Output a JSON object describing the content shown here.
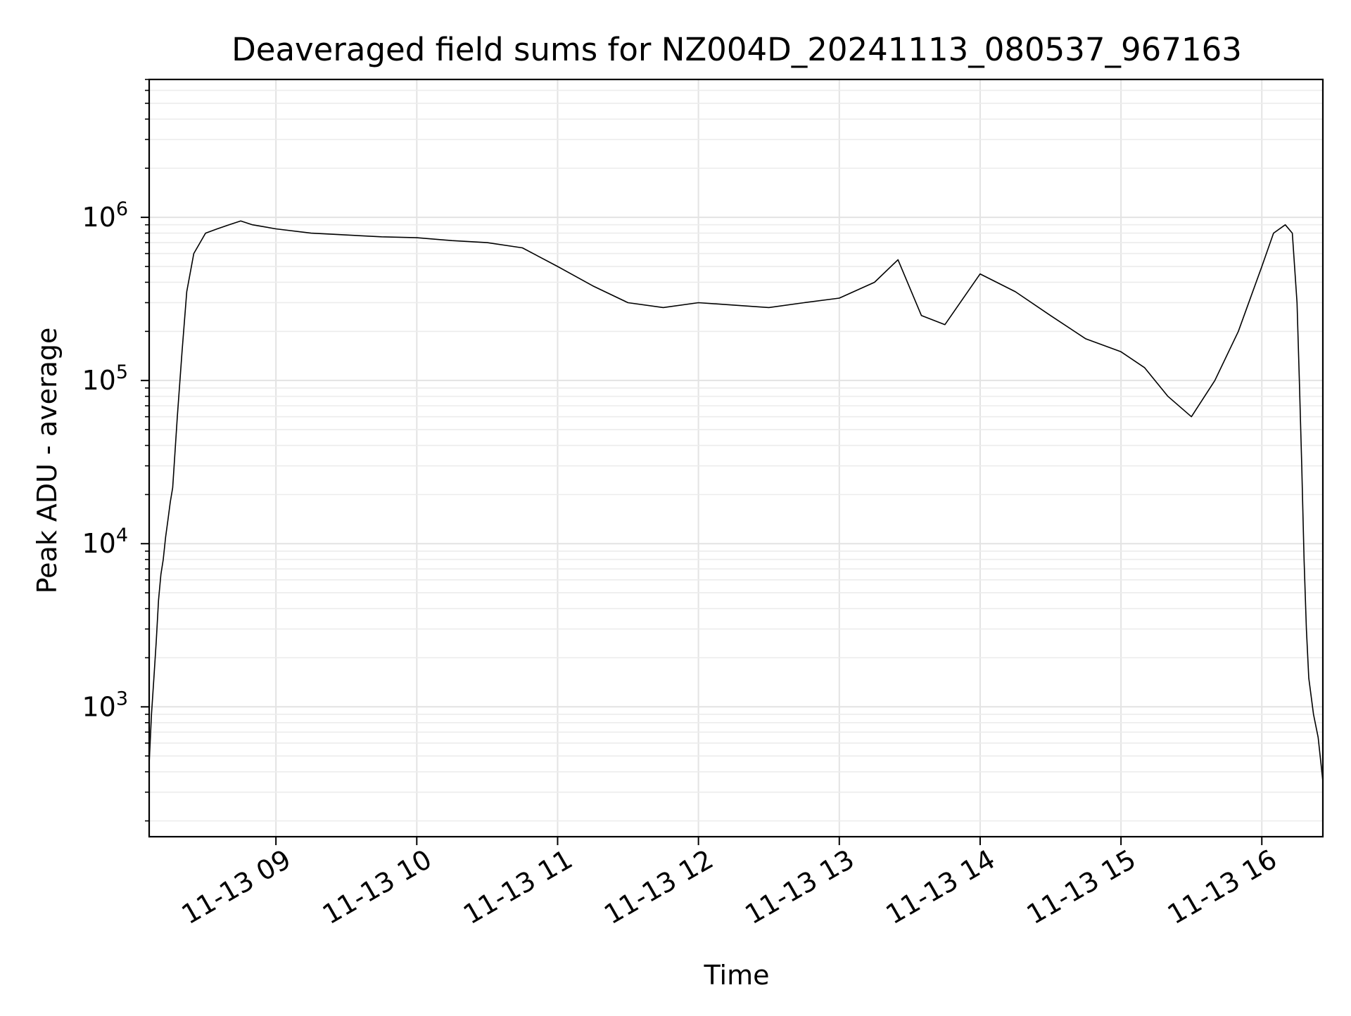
{
  "chart_data": {
    "type": "line",
    "title": "Deaveraged field sums for NZ004D_20241113_080537_967163",
    "xlabel": "Time",
    "ylabel": "Peak ADU - average",
    "yscale": "log",
    "ylim": [
      160,
      7000000
    ],
    "xlim": [
      "2024-11-13 08:06:00",
      "2024-11-13 16:26:00"
    ],
    "grid": true,
    "x_tick_labels": [
      {
        "value": "2024-11-13 09:00:00",
        "label": "11-13 09"
      },
      {
        "value": "2024-11-13 10:00:00",
        "label": "11-13 10"
      },
      {
        "value": "2024-11-13 11:00:00",
        "label": "11-13 11"
      },
      {
        "value": "2024-11-13 12:00:00",
        "label": "11-13 12"
      },
      {
        "value": "2024-11-13 13:00:00",
        "label": "11-13 13"
      },
      {
        "value": "2024-11-13 14:00:00",
        "label": "11-13 14"
      },
      {
        "value": "2024-11-13 15:00:00",
        "label": "11-13 15"
      },
      {
        "value": "2024-11-13 16:00:00",
        "label": "11-13 16"
      }
    ],
    "y_tick_labels": [
      {
        "value": 1000,
        "base": "10",
        "exp": "3"
      },
      {
        "value": 10000,
        "base": "10",
        "exp": "4"
      },
      {
        "value": 100000,
        "base": "10",
        "exp": "5"
      },
      {
        "value": 1000000,
        "base": "10",
        "exp": "6"
      }
    ],
    "series": [
      {
        "color": "#000000",
        "x": [
          "2024-11-13 08:06:00",
          "2024-11-13 08:07:00",
          "2024-11-13 08:08:00",
          "2024-11-13 08:09:00",
          "2024-11-13 08:10:00",
          "2024-11-13 08:11:00",
          "2024-11-13 08:12:00",
          "2024-11-13 08:13:00",
          "2024-11-13 08:14:00",
          "2024-11-13 08:15:00",
          "2024-11-13 08:16:00",
          "2024-11-13 08:18:00",
          "2024-11-13 08:20:00",
          "2024-11-13 08:22:00",
          "2024-11-13 08:25:00",
          "2024-11-13 08:30:00",
          "2024-11-13 08:35:00",
          "2024-11-13 08:40:00",
          "2024-11-13 08:45:00",
          "2024-11-13 08:50:00",
          "2024-11-13 09:00:00",
          "2024-11-13 09:15:00",
          "2024-11-13 09:30:00",
          "2024-11-13 09:45:00",
          "2024-11-13 10:00:00",
          "2024-11-13 10:15:00",
          "2024-11-13 10:30:00",
          "2024-11-13 10:45:00",
          "2024-11-13 11:00:00",
          "2024-11-13 11:15:00",
          "2024-11-13 11:30:00",
          "2024-11-13 11:45:00",
          "2024-11-13 12:00:00",
          "2024-11-13 12:15:00",
          "2024-11-13 12:30:00",
          "2024-11-13 12:45:00",
          "2024-11-13 13:00:00",
          "2024-11-13 13:15:00",
          "2024-11-13 13:25:00",
          "2024-11-13 13:35:00",
          "2024-11-13 13:45:00",
          "2024-11-13 14:00:00",
          "2024-11-13 14:15:00",
          "2024-11-13 14:30:00",
          "2024-11-13 14:45:00",
          "2024-11-13 15:00:00",
          "2024-11-13 15:10:00",
          "2024-11-13 15:20:00",
          "2024-11-13 15:30:00",
          "2024-11-13 15:40:00",
          "2024-11-13 15:50:00",
          "2024-11-13 16:00:00",
          "2024-11-13 16:05:00",
          "2024-11-13 16:10:00",
          "2024-11-13 16:13:00",
          "2024-11-13 16:15:00",
          "2024-11-13 16:16:00",
          "2024-11-13 16:17:00",
          "2024-11-13 16:18:00",
          "2024-11-13 16:19:00",
          "2024-11-13 16:20:00",
          "2024-11-13 16:22:00",
          "2024-11-13 16:24:00",
          "2024-11-13 16:26:00"
        ],
        "y": [
          450,
          900,
          1500,
          2500,
          4500,
          6500,
          8000,
          11000,
          14000,
          18000,
          22000,
          60000,
          150000,
          350000,
          600000,
          800000,
          850000,
          900000,
          950000,
          900000,
          850000,
          800000,
          780000,
          760000,
          750000,
          720000,
          700000,
          650000,
          500000,
          380000,
          300000,
          280000,
          300000,
          290000,
          280000,
          300000,
          320000,
          400000,
          550000,
          250000,
          220000,
          450000,
          350000,
          250000,
          180000,
          150000,
          120000,
          80000,
          60000,
          100000,
          200000,
          500000,
          800000,
          900000,
          800000,
          300000,
          100000,
          30000,
          8000,
          3000,
          1500,
          900,
          650,
          350
        ]
      }
    ]
  }
}
